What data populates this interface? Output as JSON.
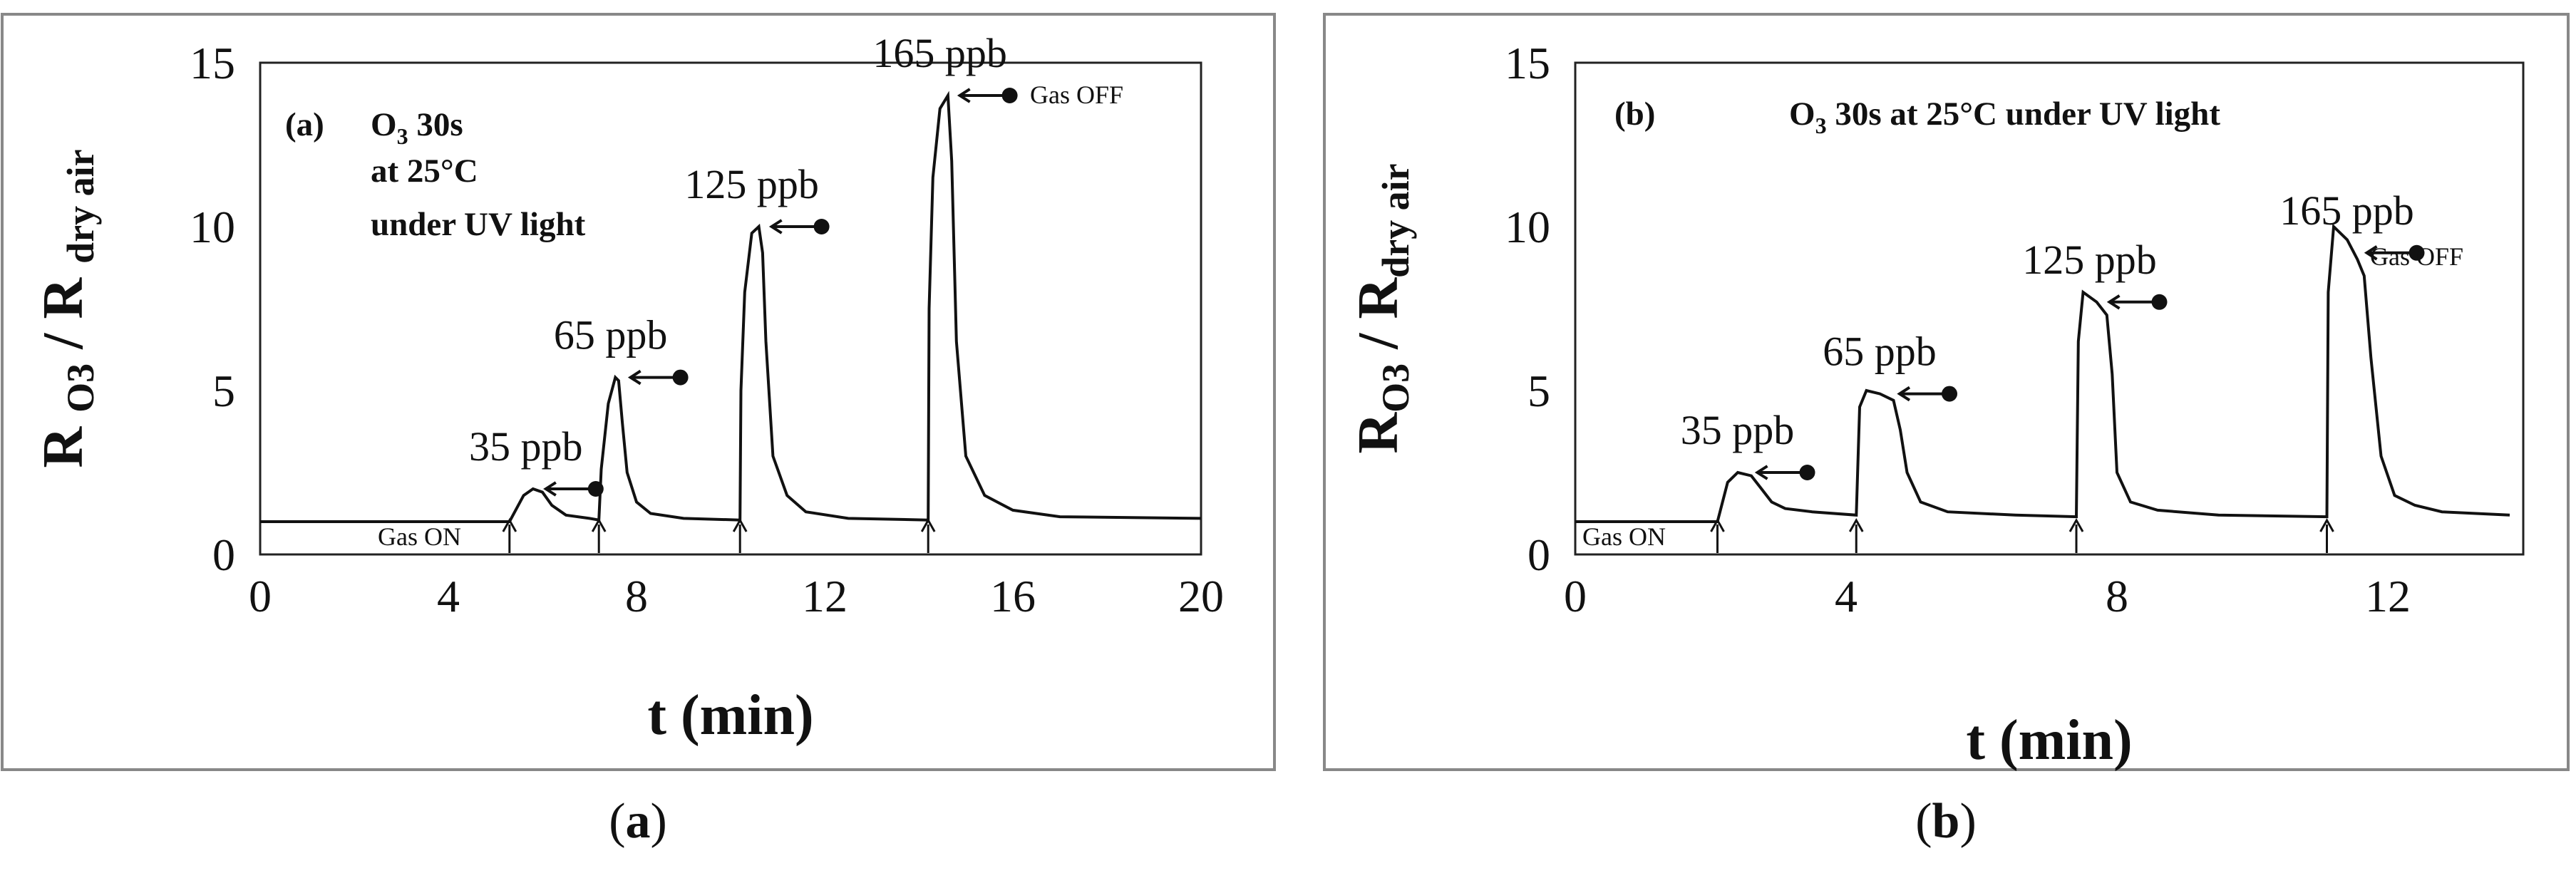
{
  "figure": {
    "captions": [
      "(a)",
      "(b)"
    ]
  },
  "chart_data": [
    {
      "type": "line",
      "panel": "(a)",
      "annotation_lines": [
        "O3 30s",
        "at 25°C",
        "under UV light"
      ],
      "xlabel": "t (min)",
      "ylabel": "R O3 / R dry air",
      "xlim": [
        0,
        20
      ],
      "ylim": [
        0,
        15
      ],
      "xticks": [
        0,
        4,
        8,
        12,
        16,
        20
      ],
      "yticks": [
        0,
        5,
        10,
        15
      ],
      "gas_on_label": "Gas ON",
      "gas_off_label": "Gas OFF",
      "gas_on_times": [
        5.3,
        7.2,
        10.2,
        14.2
      ],
      "peaks": [
        {
          "label": "35 ppb",
          "t": 5.8,
          "value": 2.0
        },
        {
          "label": "65 ppb",
          "t": 7.6,
          "value": 5.4
        },
        {
          "label": "125 ppb",
          "t": 10.6,
          "value": 10.0
        },
        {
          "label": "165 ppb",
          "t": 14.6,
          "value": 14.0
        }
      ],
      "series": [
        {
          "x": [
            0,
            5.3,
            5.45,
            5.6,
            5.8,
            6.0,
            6.2,
            6.5,
            7.0,
            7.2,
            7.25,
            7.4,
            7.55,
            7.62,
            7.7,
            7.8,
            8.0,
            8.3,
            9.0,
            10.2,
            10.22,
            10.3,
            10.45,
            10.6,
            10.68,
            10.75,
            10.9,
            11.2,
            11.6,
            12.5,
            14.2,
            14.22,
            14.3,
            14.45,
            14.62,
            14.7,
            14.8,
            15.0,
            15.4,
            16.0,
            17.0,
            20.0
          ],
          "y": [
            1.0,
            1.0,
            1.4,
            1.8,
            2.0,
            1.9,
            1.5,
            1.2,
            1.1,
            1.05,
            2.6,
            4.6,
            5.4,
            5.3,
            4.0,
            2.5,
            1.6,
            1.25,
            1.1,
            1.05,
            5.0,
            8.0,
            9.8,
            10.0,
            9.2,
            6.5,
            3.0,
            1.8,
            1.3,
            1.1,
            1.05,
            7.5,
            11.5,
            13.6,
            14.0,
            12.0,
            6.5,
            3.0,
            1.8,
            1.35,
            1.15,
            1.1
          ]
        }
      ]
    },
    {
      "type": "line",
      "panel": "(b)",
      "annotation_lines": [
        "O3 30s at 25°C under UV light"
      ],
      "xlabel": "t (min)",
      "ylabel": "RO3 / Rdry air",
      "xlim": [
        0,
        14
      ],
      "ylim": [
        0,
        15
      ],
      "xticks": [
        0,
        4,
        8,
        12
      ],
      "yticks": [
        0,
        5,
        10,
        15
      ],
      "gas_on_label": "Gas ON",
      "gas_off_label": "Gas OFF",
      "gas_on_times": [
        2.1,
        4.15,
        7.4,
        11.1
      ],
      "peaks": [
        {
          "label": "35 ppb",
          "t": 2.5,
          "value": 2.5
        },
        {
          "label": "65 ppb",
          "t": 4.6,
          "value": 4.9
        },
        {
          "label": "125 ppb",
          "t": 7.7,
          "value": 7.7
        },
        {
          "label": "165 ppb",
          "t": 11.5,
          "value": 9.2
        }
      ],
      "series": [
        {
          "x": [
            0,
            2.1,
            2.25,
            2.4,
            2.6,
            2.75,
            2.9,
            3.1,
            3.5,
            4.15,
            4.2,
            4.3,
            4.5,
            4.7,
            4.8,
            4.9,
            5.1,
            5.5,
            6.5,
            7.4,
            7.43,
            7.5,
            7.7,
            7.85,
            7.93,
            8.0,
            8.2,
            8.6,
            9.5,
            11.1,
            11.12,
            11.2,
            11.4,
            11.55,
            11.65,
            11.75,
            11.9,
            12.1,
            12.4,
            12.8,
            13.8
          ],
          "y": [
            1.0,
            1.0,
            2.2,
            2.5,
            2.4,
            2.0,
            1.6,
            1.4,
            1.3,
            1.2,
            4.5,
            5.0,
            4.9,
            4.7,
            3.8,
            2.5,
            1.6,
            1.3,
            1.2,
            1.15,
            6.5,
            8.0,
            7.7,
            7.3,
            5.5,
            2.5,
            1.6,
            1.35,
            1.2,
            1.15,
            8.0,
            10.0,
            9.6,
            9.0,
            8.5,
            6.0,
            3.0,
            1.8,
            1.5,
            1.3,
            1.2
          ]
        }
      ]
    }
  ]
}
